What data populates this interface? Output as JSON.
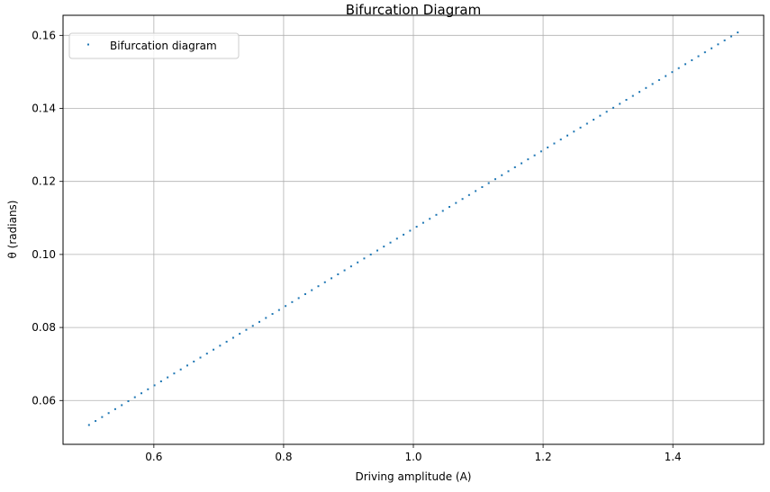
{
  "chart_data": {
    "type": "scatter",
    "title": "Bifurcation Diagram",
    "xlabel": "Driving amplitude (A)",
    "ylabel": "θ (radians)",
    "xlim": [
      0.46,
      1.54
    ],
    "ylim": [
      0.048,
      0.1655
    ],
    "xticks": [
      0.6,
      0.8,
      1.0,
      1.2,
      1.4
    ],
    "xtick_labels": [
      "0.6",
      "0.8",
      "1.0",
      "1.2",
      "1.4"
    ],
    "yticks": [
      0.06,
      0.08,
      0.1,
      0.12,
      0.14,
      0.16
    ],
    "ytick_labels": [
      "0.06",
      "0.08",
      "0.10",
      "0.12",
      "0.14",
      "0.16"
    ],
    "grid": true,
    "legend_position": "upper left",
    "series": [
      {
        "name": "Bifurcation diagram",
        "color": "#1f77b4",
        "x_start": 0.5,
        "x_end": 1.5,
        "count": 100,
        "y_start": 0.0533,
        "y_end": 0.1608,
        "relation": "linear"
      }
    ]
  }
}
